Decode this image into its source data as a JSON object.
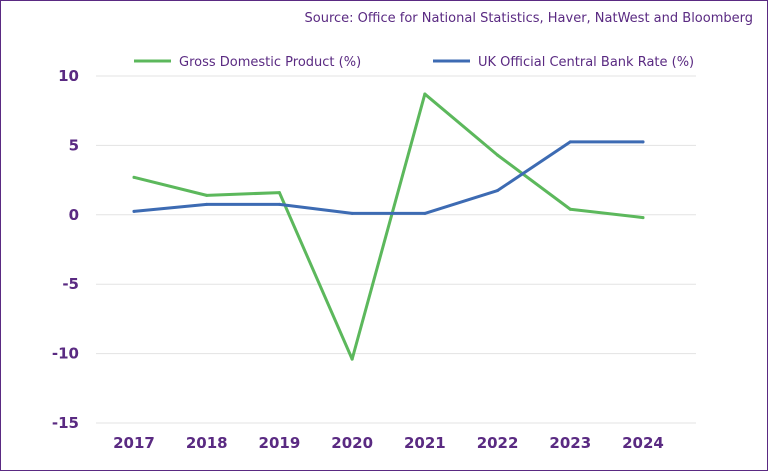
{
  "source": "Source: Office for National Statistics, Haver, NatWest and Bloomberg",
  "chart_data": {
    "type": "line",
    "title": "",
    "xlabel": "",
    "ylabel": "",
    "categories": [
      "2017",
      "2018",
      "2019",
      "2020",
      "2021",
      "2022",
      "2023",
      "2024"
    ],
    "ylim": [
      -15,
      10
    ],
    "yticks": [
      "10",
      "5",
      "0",
      "-5",
      "-10",
      "-15"
    ],
    "ytick_values": [
      10,
      5,
      0,
      -5,
      -10,
      -15
    ],
    "grid": true,
    "legend_position": "top",
    "series": [
      {
        "name": "Gross Domestic Product (%)",
        "color": "#5cb85c",
        "values": [
          2.7,
          1.4,
          1.6,
          -10.4,
          8.7,
          4.3,
          0.4,
          -0.2
        ]
      },
      {
        "name": "UK Official Central Bank Rate (%)",
        "color": "#3d6bb3",
        "values": [
          0.25,
          0.75,
          0.75,
          0.1,
          0.1,
          1.75,
          5.25,
          5.25
        ]
      }
    ]
  }
}
